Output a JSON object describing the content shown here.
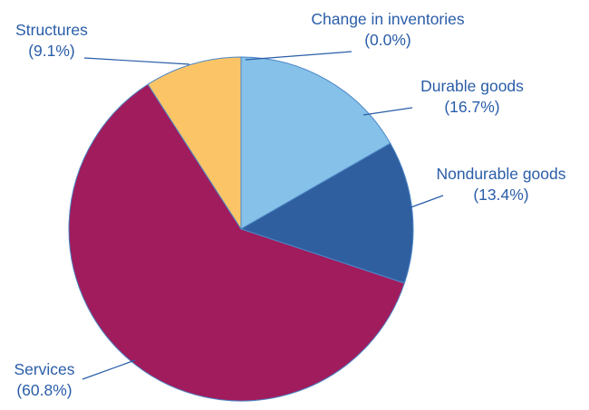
{
  "figure": {
    "background_color": "#FFFFFF"
  },
  "chart_data": {
    "type": "pie",
    "title": "",
    "legend_position": "none",
    "start_angle_deg": 0,
    "direction": "clockwise",
    "label_color": "#2A5DA8",
    "leader_line_color": "#2A5DA8",
    "slice_stroke_color": "#4E87C7",
    "slices": [
      {
        "id": "change-in-inventories",
        "label": "Change in inventories",
        "pct_label": "(0.0%)",
        "value": 0.0,
        "color": "#85C1E8"
      },
      {
        "id": "durable-goods",
        "label": "Durable goods",
        "pct_label": "(16.7%)",
        "value": 16.7,
        "color": "#85C1E8"
      },
      {
        "id": "nondurable-goods",
        "label": "Nondurable goods",
        "pct_label": "(13.4%)",
        "value": 13.4,
        "color": "#2F5F9F"
      },
      {
        "id": "services",
        "label": "Services",
        "pct_label": "(60.8%)",
        "value": 60.8,
        "color": "#A01C5C"
      },
      {
        "id": "structures",
        "label": "Structures",
        "pct_label": "(9.1%)",
        "value": 9.1,
        "color": "#FBC567"
      }
    ]
  }
}
